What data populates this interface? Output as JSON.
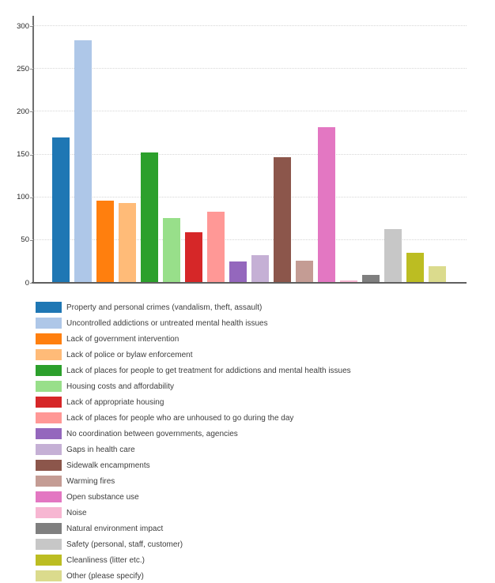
{
  "chart_data": {
    "type": "bar",
    "title": "",
    "xlabel": "",
    "ylabel": "",
    "ylim": [
      0,
      300
    ],
    "yticks": [
      0,
      50,
      100,
      150,
      200,
      250,
      300
    ],
    "grid": "horizontal-dotted",
    "legend_position": "bottom",
    "categories": [
      "Property and personal crimes (vandalism, theft, assault)",
      "Uncontrolled addictions or untreated mental health issues",
      "Lack of government intervention",
      "Lack of police or bylaw enforcement",
      "Lack of places for people to get treatment for addictions and mental health issues",
      "Housing costs and affordability",
      "Lack of appropriate housing",
      "Lack of places for people who are unhoused to go during the day",
      "No coordination between governments, agencies",
      "Gaps in health care",
      "Sidewalk encampments",
      "Warming fires",
      "Open substance use",
      "Noise",
      "Natural environment impact",
      "Safety (personal, staff, customer)",
      "Cleanliness (litter etc.)",
      "Other (please specify)"
    ],
    "values": [
      170,
      283,
      96,
      93,
      152,
      76,
      59,
      83,
      25,
      32,
      147,
      26,
      182,
      3,
      9,
      63,
      35,
      19
    ],
    "colors": [
      "#1f77b4",
      "#aec7e8",
      "#ff7f0e",
      "#ffbb78",
      "#2ca02c",
      "#98df8a",
      "#d62728",
      "#ff9896",
      "#9467bd",
      "#c5b0d5",
      "#8c564b",
      "#c49c94",
      "#e377c2",
      "#f7b6d2",
      "#7f7f7f",
      "#c7c7c7",
      "#bcbd22",
      "#dbdb8d"
    ]
  },
  "palette": {
    "background": "#ffffff",
    "axis_line": "#6e6e6e",
    "baseline": "#5f5f5f",
    "gridline": "#d6d6d6",
    "tick_label": "#262626",
    "legend_text": "#3d3d3d"
  }
}
